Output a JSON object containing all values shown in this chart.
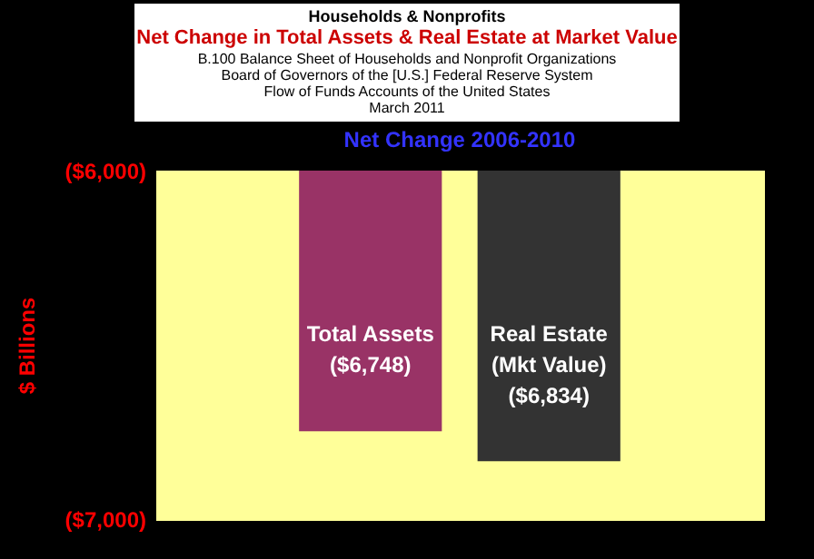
{
  "chart_data": {
    "type": "bar",
    "title": "Net Change in Total Assets & Real Estate at Market Value",
    "annotations": [
      "Households & Nonprofits",
      "B.100 Balance Sheet of Households and Nonprofit Organizations",
      "Board of Governors of the [U.S.] Federal Reserve System",
      "Flow of Funds Accounts of the United States",
      "March 2011",
      "Net Change 2006-2010"
    ],
    "ylabel": "$ Billions",
    "categories": [
      "Total Assets",
      "Real Estate (Mkt Value)"
    ],
    "values": [
      -6748,
      -6834
    ],
    "value_labels": [
      "($6,748)",
      "($6,834)"
    ],
    "colors": [
      "#993366",
      "#333333"
    ],
    "ylim": [
      -7000,
      -6000
    ],
    "yticks": [
      {
        "value": -6000,
        "label": "($6,000)"
      },
      {
        "value": -7000,
        "label": "($7,000)"
      }
    ],
    "tick_labels": "y",
    "grid": false,
    "legend": false
  }
}
